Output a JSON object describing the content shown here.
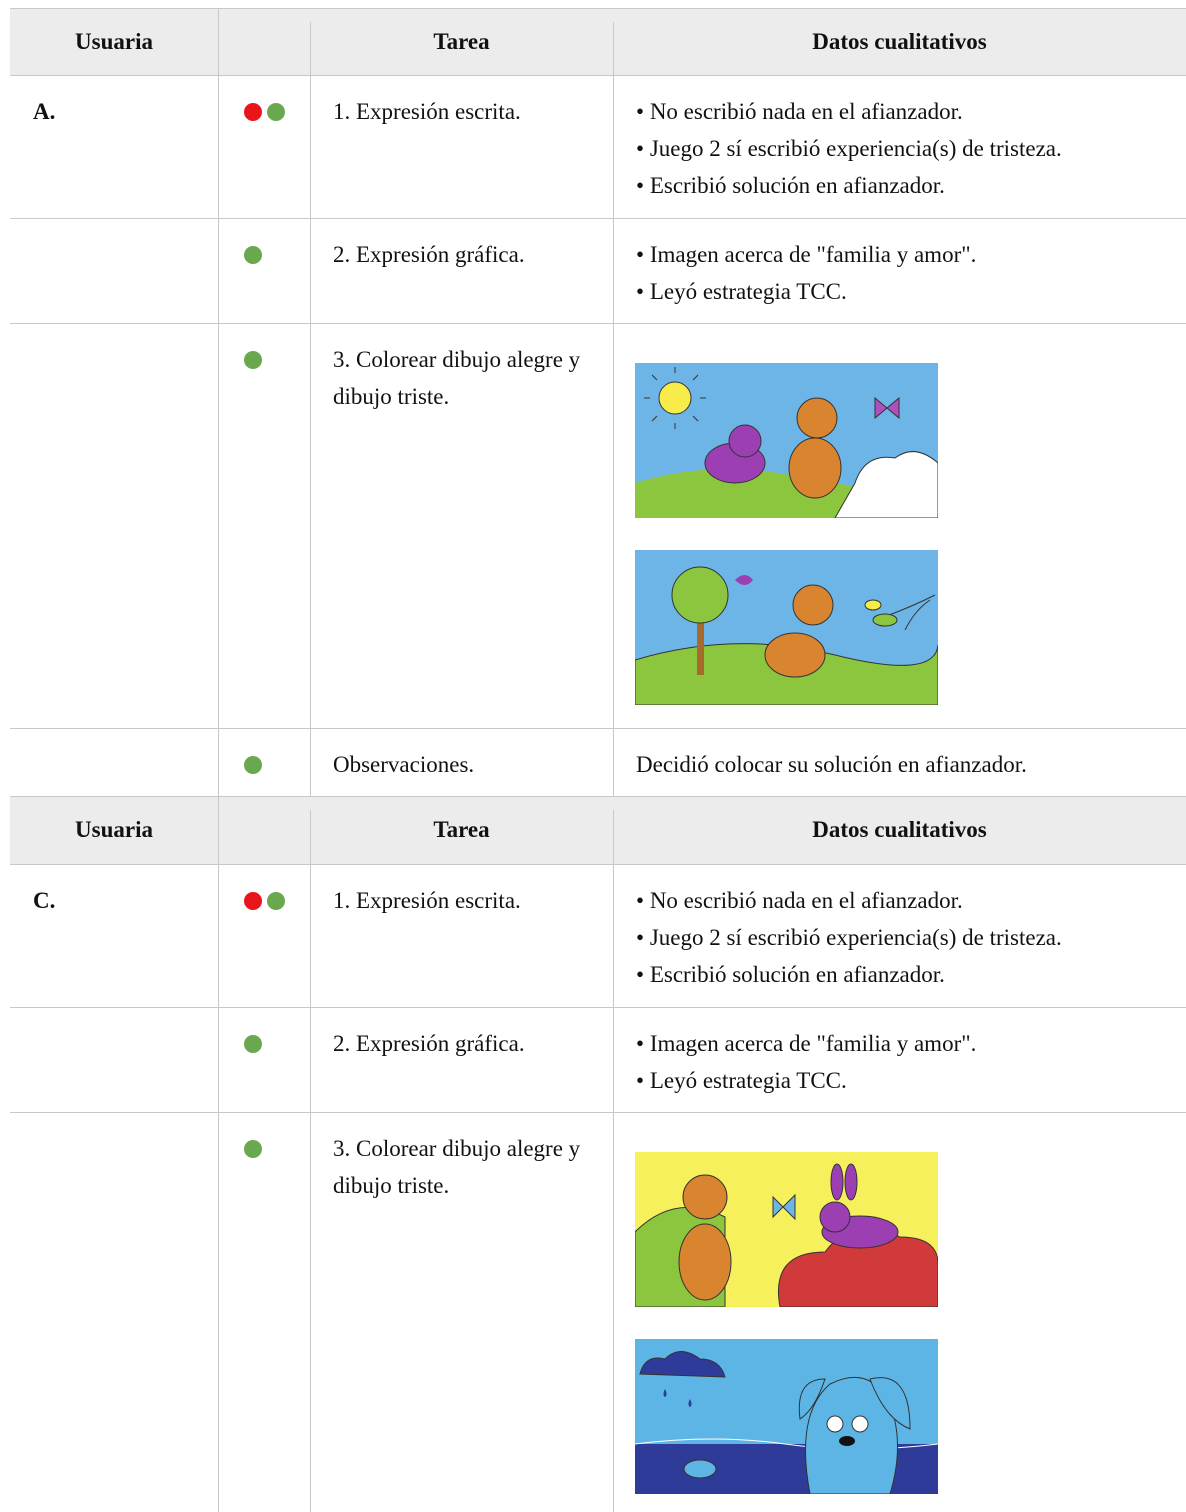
{
  "tables": [
    {
      "header": {
        "user": "Usuaria",
        "task": "Tarea",
        "data": "Datos cualitativos"
      },
      "rows": [
        {
          "user": "A.",
          "markers": [
            "#e8161b",
            "#6aa84f"
          ],
          "task": "1. Expresión escrita.",
          "notes": [
            "No escribió nada en el afianzador.",
            "Juego 2 sí escribió experiencia(s) de tristeza.",
            "Escribió solución en afianzador."
          ]
        },
        {
          "markers": [
            "#6aa84f"
          ],
          "task": "2. Expresión gráfica.",
          "notes": [
            "Imagen acerca de \"familia y amor\".",
            "Leyó estrategia TCC."
          ]
        },
        {
          "markers": [
            "#6aa84f"
          ],
          "task": "3. Colorear dibujo alegre y dibujo triste."
        },
        {
          "markers": [
            "#6aa84f"
          ],
          "task": "Observaciones.",
          "note": "Decidió colocar su solución en afianzador."
        }
      ]
    },
    {
      "header": {
        "user": "Usuaria",
        "task": "Tarea",
        "data": "Datos cualitativos"
      },
      "rows": [
        {
          "user": "C.",
          "markers": [
            "#e8161b",
            "#6aa84f"
          ],
          "task": "1. Expresión escrita.",
          "notes": [
            "No escribió nada en el afianzador.",
            "Juego 2 sí escribió experiencia(s) de tristeza.",
            "Escribió solución en afianzador."
          ]
        },
        {
          "markers": [
            "#6aa84f"
          ],
          "task": "2. Expresión gráfica.",
          "notes": [
            "Imagen acerca de \"familia y amor\".",
            "Leyó estrategia TCC."
          ]
        },
        {
          "markers": [
            "#6aa84f"
          ],
          "task": "3. Colorear dibujo alegre y dibujo triste."
        }
      ]
    }
  ]
}
